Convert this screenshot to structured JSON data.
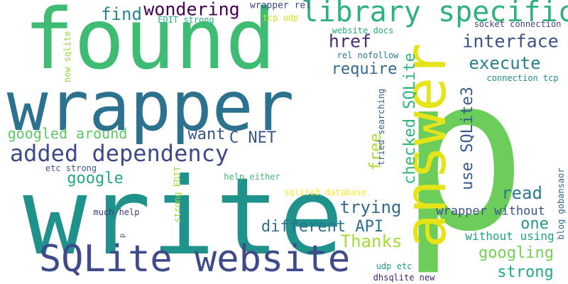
{
  "words": [
    {
      "text": "p",
      "color": "#6ccd5a",
      "rotated": false
    },
    {
      "text": "write",
      "color": "#20928c",
      "rotated": false
    },
    {
      "text": "found",
      "color": "#3fbc73",
      "rotated": false
    },
    {
      "text": "wrapper",
      "color": "#2c728e",
      "rotated": false
    },
    {
      "text": "answer",
      "color": "#e5e419",
      "rotated": true
    },
    {
      "text": "SQLite website",
      "color": "#3e4a89",
      "rotated": false
    },
    {
      "text": "library specific",
      "color": "#2db27d",
      "rotated": false
    },
    {
      "text": "added dependency",
      "color": "#3e4a89",
      "rotated": false
    },
    {
      "text": "wondering",
      "color": "#440154",
      "rotated": false
    },
    {
      "text": "find",
      "color": "#25848e",
      "rotated": false
    },
    {
      "text": "href",
      "color": "#472d7b",
      "rotated": false
    },
    {
      "text": "interface",
      "color": "#3b528b",
      "rotated": false
    },
    {
      "text": "execute",
      "color": "#27808e",
      "rotated": false
    },
    {
      "text": "require",
      "color": "#31688e",
      "rotated": false
    },
    {
      "text": "free",
      "color": "#addc30",
      "rotated": true
    },
    {
      "text": "checked SQLite",
      "color": "#2fb47c",
      "rotated": true
    },
    {
      "text": "use SQLite3",
      "color": "#38598c",
      "rotated": true
    },
    {
      "text": "googled around",
      "color": "#5ec962",
      "rotated": false
    },
    {
      "text": "want",
      "color": "#3b528b",
      "rotated": false
    },
    {
      "text": "C NET",
      "color": "#38598c",
      "rotated": false
    },
    {
      "text": "google",
      "color": "#22a884",
      "rotated": false
    },
    {
      "text": "read",
      "color": "#2a788e",
      "rotated": false
    },
    {
      "text": "trying",
      "color": "#31688e",
      "rotated": false
    },
    {
      "text": "different API",
      "color": "#2d708e",
      "rotated": false
    },
    {
      "text": "one",
      "color": "#1f998a",
      "rotated": false
    },
    {
      "text": "Thanks",
      "color": "#a5db36",
      "rotated": false
    },
    {
      "text": "googling",
      "color": "#75d054",
      "rotated": false
    },
    {
      "text": "strong",
      "color": "#22a884",
      "rotated": false
    },
    {
      "text": "wrapper without",
      "color": "#3b528b",
      "rotated": false
    },
    {
      "text": "without using",
      "color": "#1fa188",
      "rotated": false
    },
    {
      "text": "wrapper rel",
      "color": "#3e4a89",
      "rotated": false
    },
    {
      "text": "EDIT strong",
      "color": "#27ad81",
      "rotated": false
    },
    {
      "text": "tcp udp",
      "color": "#d8e219",
      "rotated": false
    },
    {
      "text": "website docs",
      "color": "#24aa83",
      "rotated": false
    },
    {
      "text": "socket connection",
      "color": "#414487",
      "rotated": false
    },
    {
      "text": "rel nofollow",
      "color": "#2a788e",
      "rotated": false
    },
    {
      "text": "connection tcp",
      "color": "#228c8d",
      "rotated": false
    },
    {
      "text": "new sqlite",
      "color": "#95d840",
      "rotated": true
    },
    {
      "text": "tried searching",
      "color": "#355f8d",
      "rotated": true
    },
    {
      "text": "etc strong",
      "color": "#39568c",
      "rotated": false
    },
    {
      "text": "help either",
      "color": "#3dbc74",
      "rotated": false
    },
    {
      "text": "sqlite3 database",
      "color": "#fde725",
      "rotated": false
    },
    {
      "text": "strong EDIT",
      "color": "#9fda3a",
      "rotated": true
    },
    {
      "text": "much help",
      "color": "#453781",
      "rotated": false
    },
    {
      "text": "p",
      "color": "#3b528b",
      "rotated": true
    },
    {
      "text": "blog gobansaor",
      "color": "#31688e",
      "rotated": true
    },
    {
      "text": "udp etc",
      "color": "#1e9c89",
      "rotated": false
    },
    {
      "text": "dhsqlite new",
      "color": "#482173",
      "rotated": false
    }
  ]
}
